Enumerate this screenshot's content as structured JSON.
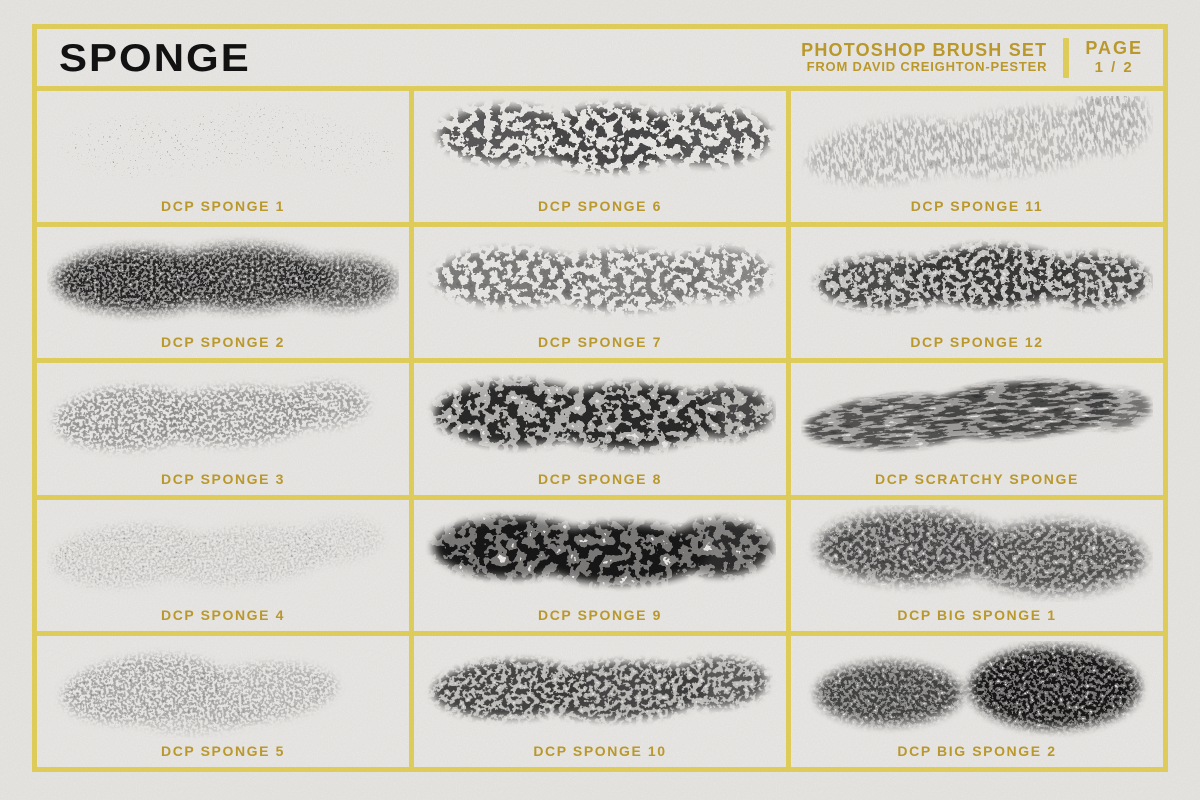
{
  "page": {
    "paper_color": "#f1efec",
    "frame_color": "#e9d65f",
    "gold_color": "#c3a02f",
    "ink_color": "#131313"
  },
  "header": {
    "title": "SPONGE",
    "subtitle_line1": "PHOTOSHOP BRUSH SET",
    "subtitle_line2": "FROM DAVID CREIGHTON-PESTER",
    "page_label": "PAGE",
    "page_number": "1 / 2"
  },
  "grid": {
    "rows": 5,
    "columns": 3,
    "cells": [
      {
        "label": "DCP SPONGE 1",
        "texture": {
          "seed": 11,
          "freq": "0.55",
          "oct": 2,
          "levels": "0 0 0 0.9",
          "blur": 5,
          "op": 0.55,
          "fill": "#555555",
          "rot": 0,
          "blobs": [
            [
              95,
              50,
              82,
              28,
              0.9
            ],
            [
              200,
              40,
              90,
              30,
              0.8
            ],
            [
              288,
              55,
              50,
              22,
              0.7
            ]
          ]
        }
      },
      {
        "label": "DCP SPONGE 6",
        "texture": {
          "seed": 22,
          "freq": "0.12",
          "oct": 3,
          "levels": "0 0 1 1",
          "blur": 4,
          "op": 0.8,
          "fill": "#222222",
          "rot": 0,
          "blobs": [
            [
              80,
              38,
              66,
              28,
              0.9
            ],
            [
              180,
              42,
              72,
              32,
              1
            ],
            [
              275,
              40,
              60,
              28,
              0.9
            ]
          ]
        }
      },
      {
        "label": "DCP SPONGE 11",
        "texture": {
          "seed": 33,
          "freq": "0.4 0.12",
          "oct": 2,
          "levels": "0 0 0.6 1",
          "blur": 5,
          "op": 0.5,
          "fill": "#444444",
          "rot": -7,
          "blobs": [
            [
              90,
              45,
              85,
              30,
              0.9
            ],
            [
              210,
              50,
              90,
              32,
              0.8
            ],
            [
              302,
              40,
              36,
              34,
              0.9
            ]
          ]
        }
      },
      {
        "label": "DCP SPONGE 2",
        "texture": {
          "seed": 44,
          "freq": "0.35",
          "oct": 3,
          "levels": "0 0.45 1 1",
          "blur": 6,
          "op": 0.92,
          "fill": "#161616",
          "rot": 0,
          "blobs": [
            [
              90,
              48,
              82,
              30,
              1
            ],
            [
              190,
              45,
              86,
              30,
              0.95
            ],
            [
              282,
              50,
              55,
              24,
              0.8
            ]
          ]
        }
      },
      {
        "label": "DCP SPONGE 7",
        "texture": {
          "seed": 55,
          "freq": "0.14",
          "oct": 3,
          "levels": "0 0 0.9 1",
          "blur": 4,
          "op": 0.68,
          "fill": "#2a2a2a",
          "rot": 0,
          "blobs": [
            [
              85,
              45,
              75,
              28,
              0.9
            ],
            [
              195,
              48,
              80,
              30,
              0.85
            ],
            [
              285,
              42,
              50,
              26,
              0.8
            ]
          ]
        }
      },
      {
        "label": "DCP SPONGE 12",
        "texture": {
          "seed": 66,
          "freq": "0.16",
          "oct": 3,
          "levels": "0 0.2 1 1",
          "blur": 4,
          "op": 0.85,
          "fill": "#1d1d1d",
          "rot": 0,
          "blobs": [
            [
              85,
              50,
              70,
              26,
              0.9
            ],
            [
              185,
              44,
              82,
              30,
              1
            ],
            [
              282,
              48,
              54,
              26,
              0.9
            ]
          ]
        }
      },
      {
        "label": "DCP SPONGE 3",
        "texture": {
          "seed": 77,
          "freq": "0.32",
          "oct": 2,
          "levels": "0 0 0.75 1",
          "blur": 5,
          "op": 0.62,
          "fill": "#333333",
          "rot": -3,
          "blobs": [
            [
              80,
              45,
              72,
              30,
              0.9
            ],
            [
              180,
              48,
              80,
              28,
              0.85
            ],
            [
              266,
              42,
              45,
              22,
              0.7
            ]
          ]
        }
      },
      {
        "label": "DCP SPONGE 8",
        "texture": {
          "seed": 88,
          "freq": "0.11",
          "oct": 3,
          "levels": "0 0.3 1 1",
          "blur": 4,
          "op": 0.9,
          "fill": "#151515",
          "rot": 0,
          "blobs": [
            [
              90,
              45,
              80,
              32,
              1
            ],
            [
              200,
              48,
              86,
              32,
              1
            ],
            [
              292,
              44,
              44,
              26,
              0.85
            ]
          ]
        }
      },
      {
        "label": "DCP SCRATCHY SPONGE",
        "texture": {
          "seed": 99,
          "freq": "0.05 0.3",
          "oct": 3,
          "levels": "0 0.4 0.9 1",
          "blur": 3,
          "op": 0.88,
          "fill": "#1a1a1a",
          "rot": -4,
          "blobs": [
            [
              95,
              48,
              92,
              26,
              0.9
            ],
            [
              212,
              44,
              96,
              28,
              1
            ],
            [
              302,
              50,
              36,
              20,
              0.7
            ]
          ]
        }
      },
      {
        "label": "DCP SPONGE 4",
        "texture": {
          "seed": 101,
          "freq": "0.45",
          "oct": 2,
          "levels": "0 0 0.3 1",
          "blur": 5,
          "op": 0.55,
          "fill": "#404040",
          "rot": -5,
          "blobs": [
            [
              80,
              42,
              76,
              30,
              0.9
            ],
            [
              190,
              52,
              86,
              28,
              0.8
            ],
            [
              282,
              45,
              44,
              22,
              0.6
            ]
          ]
        }
      },
      {
        "label": "DCP SPONGE 9",
        "texture": {
          "seed": 112,
          "freq": "0.1",
          "oct": 3,
          "levels": "0 0.5 1 1",
          "blur": 4,
          "op": 0.95,
          "fill": "#101010",
          "rot": 0,
          "blobs": [
            [
              85,
              42,
              76,
              30,
              1
            ],
            [
              190,
              48,
              86,
              30,
              1
            ],
            [
              286,
              42,
              50,
              28,
              0.9
            ]
          ]
        }
      },
      {
        "label": "DCP BIG SPONGE 1",
        "texture": {
          "seed": 123,
          "freq": "0.22",
          "oct": 3,
          "levels": "0 0.4 0.9 1",
          "blur": 6,
          "op": 0.85,
          "fill": "#1c1c1c",
          "rot": 0,
          "blobs": [
            [
              108,
              42,
              92,
              34,
              1
            ],
            [
              246,
              52,
              86,
              34,
              0.95
            ]
          ]
        }
      },
      {
        "label": "DCP SPONGE 5",
        "texture": {
          "seed": 134,
          "freq": "0.38",
          "oct": 2,
          "levels": "0 0 0.6 1",
          "blur": 5,
          "op": 0.6,
          "fill": "#3a3a3a",
          "rot": -6,
          "blobs": [
            [
              95,
              40,
              80,
              32,
              0.95
            ],
            [
              200,
              55,
              80,
              28,
              0.75
            ],
            [
              150,
              70,
              60,
              18,
              0.5
            ]
          ]
        }
      },
      {
        "label": "DCP SPONGE 10",
        "texture": {
          "seed": 145,
          "freq": "0.2",
          "oct": 3,
          "levels": "0 0.25 1 1",
          "blur": 4,
          "op": 0.85,
          "fill": "#1b1b1b",
          "rot": -2,
          "blobs": [
            [
              85,
              45,
              76,
              28,
              0.95
            ],
            [
              190,
              50,
              86,
              28,
              0.9
            ],
            [
              282,
              45,
              50,
              24,
              0.8
            ]
          ]
        }
      },
      {
        "label": "DCP BIG SPONGE 2",
        "texture": {
          "seed": 156,
          "freq": "0.28",
          "oct": 3,
          "levels": "0 0.55 1 1",
          "blur": 5,
          "op": 0.95,
          "fill": "#0e0e0e",
          "rot": 0,
          "blobs": [
            [
              85,
              52,
              70,
              30,
              0.8
            ],
            [
              245,
              46,
              82,
              40,
              1
            ]
          ]
        }
      }
    ]
  }
}
